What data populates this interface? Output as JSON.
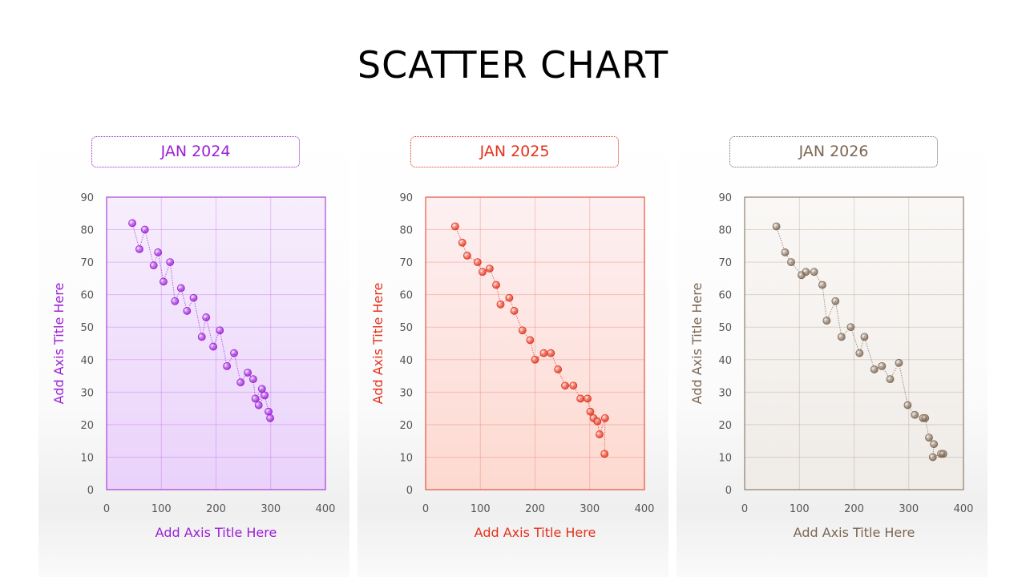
{
  "title": "SCATTER CHART",
  "chart_data": [
    {
      "type": "scatter",
      "title": "JAN 2024",
      "xlabel": "Add Axis Title Here",
      "ylabel": "Add Axis Title Here",
      "xlim": [
        0,
        400
      ],
      "ylim": [
        0,
        90
      ],
      "xticks": [
        0,
        100,
        200,
        300,
        400
      ],
      "yticks": [
        0,
        10,
        20,
        30,
        40,
        50,
        60,
        70,
        80,
        90
      ],
      "grid": true,
      "color": "#9b1fd6",
      "plot_bg": [
        "#f7eefc",
        "#ead2fb"
      ],
      "x": [
        47,
        60,
        70,
        86,
        94,
        104,
        116,
        125,
        136,
        147,
        159,
        174,
        182,
        195,
        207,
        220,
        233,
        245,
        258,
        268,
        272,
        284,
        278,
        289,
        296,
        299
      ],
      "y": [
        82,
        74,
        80,
        69,
        73,
        64,
        70,
        58,
        62,
        55,
        59,
        47,
        53,
        44,
        49,
        38,
        42,
        33,
        36,
        34,
        28,
        31,
        26,
        29,
        24,
        22
      ]
    },
    {
      "type": "scatter",
      "title": "JAN 2025",
      "xlabel": "Add Axis Title Here",
      "ylabel": "Add Axis Title Here",
      "xlim": [
        0,
        400
      ],
      "ylim": [
        0,
        90
      ],
      "xticks": [
        0,
        100,
        200,
        300,
        400
      ],
      "yticks": [
        0,
        10,
        20,
        30,
        40,
        50,
        60,
        70,
        80,
        90
      ],
      "grid": true,
      "color": "#e2321c",
      "plot_bg": [
        "#fdf0f2",
        "#fdd9d0"
      ],
      "x": [
        54,
        67,
        76,
        95,
        104,
        117,
        129,
        137,
        153,
        162,
        177,
        191,
        200,
        216,
        229,
        242,
        255,
        270,
        283,
        296,
        301,
        307,
        314,
        318,
        328,
        327
      ],
      "y": [
        81,
        76,
        72,
        70,
        67,
        68,
        63,
        57,
        59,
        55,
        49,
        46,
        40,
        42,
        42,
        37,
        32,
        32,
        28,
        28,
        24,
        22,
        21,
        17,
        22,
        11
      ]
    },
    {
      "type": "scatter",
      "title": "JAN 2026",
      "xlabel": "Add Axis Title Here",
      "ylabel": "Add Axis Title Here",
      "xlim": [
        0,
        400
      ],
      "ylim": [
        0,
        90
      ],
      "xticks": [
        0,
        100,
        200,
        300,
        400
      ],
      "yticks": [
        0,
        10,
        20,
        30,
        40,
        50,
        60,
        70,
        80,
        90
      ],
      "grid": true,
      "color": "#7d6652",
      "plot_bg": [
        "#faf8f6",
        "#efebe7"
      ],
      "x": [
        58,
        74,
        85,
        104,
        112,
        127,
        142,
        150,
        166,
        177,
        194,
        210,
        219,
        237,
        251,
        266,
        282,
        298,
        311,
        326,
        330,
        337,
        346,
        344,
        359,
        363
      ],
      "y": [
        81,
        73,
        70,
        66,
        67,
        67,
        63,
        52,
        58,
        47,
        50,
        42,
        47,
        37,
        38,
        34,
        39,
        26,
        23,
        22,
        22,
        16,
        14,
        10,
        11,
        11
      ]
    }
  ]
}
